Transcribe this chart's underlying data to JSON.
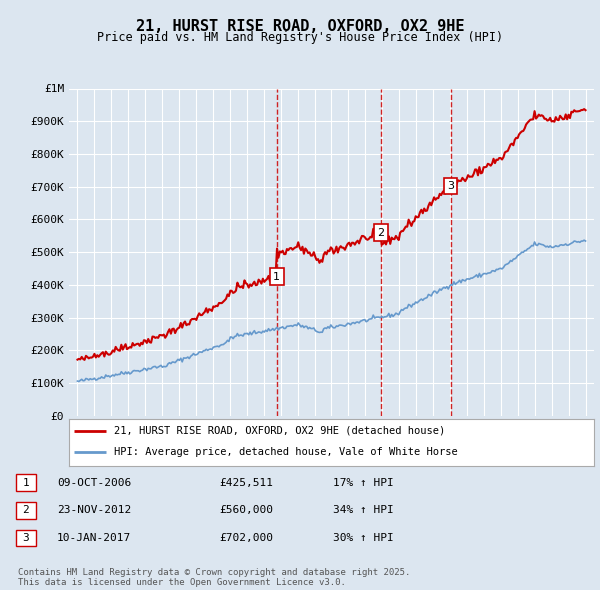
{
  "title": "21, HURST RISE ROAD, OXFORD, OX2 9HE",
  "subtitle": "Price paid vs. HM Land Registry's House Price Index (HPI)",
  "background_color": "#dce6f0",
  "plot_bg_color": "#dce6f0",
  "ylim": [
    0,
    1000000
  ],
  "yticks": [
    0,
    100000,
    200000,
    300000,
    400000,
    500000,
    600000,
    700000,
    800000,
    900000,
    1000000
  ],
  "ytick_labels": [
    "£0",
    "£100K",
    "£200K",
    "£300K",
    "£400K",
    "£500K",
    "£600K",
    "£700K",
    "£800K",
    "£900K",
    "£1M"
  ],
  "transactions": [
    {
      "label": "1",
      "date_str": "09-OCT-2006",
      "price": 425511,
      "hpi_pct": "17%",
      "x_year": 2006.77
    },
    {
      "label": "2",
      "date_str": "23-NOV-2012",
      "price": 560000,
      "hpi_pct": "34%",
      "x_year": 2012.9
    },
    {
      "label": "3",
      "date_str": "10-JAN-2017",
      "price": 702000,
      "hpi_pct": "30%",
      "x_year": 2017.03
    }
  ],
  "legend_entries": [
    {
      "label": "21, HURST RISE ROAD, OXFORD, OX2 9HE (detached house)",
      "color": "#cc0000"
    },
    {
      "label": "HPI: Average price, detached house, Vale of White Horse",
      "color": "#6699cc"
    }
  ],
  "table_rows": [
    [
      "1",
      "09-OCT-2006",
      "£425,511",
      "17% ↑ HPI"
    ],
    [
      "2",
      "23-NOV-2012",
      "£560,000",
      "34% ↑ HPI"
    ],
    [
      "3",
      "10-JAN-2017",
      "£702,000",
      "30% ↑ HPI"
    ]
  ],
  "footer": "Contains HM Land Registry data © Crown copyright and database right 2025.\nThis data is licensed under the Open Government Licence v3.0.",
  "hpi_color": "#6699cc",
  "price_color": "#cc0000",
  "vline_color": "#cc0000",
  "grid_color": "#ffffff",
  "xlim": [
    1994.5,
    2025.5
  ]
}
